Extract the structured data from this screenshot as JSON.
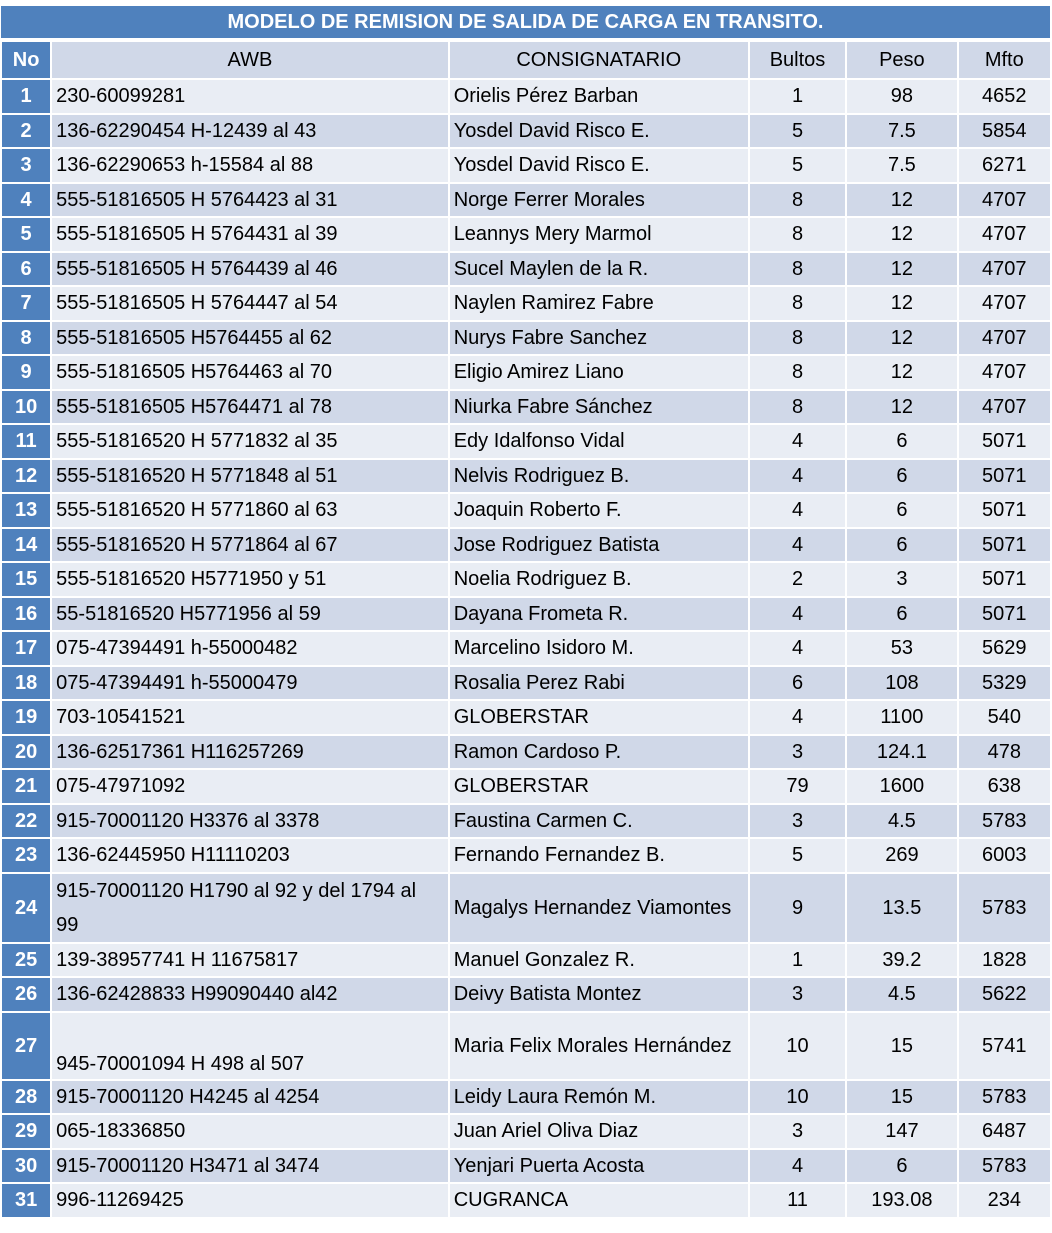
{
  "title": "MODELO DE REMISION DE SALIDA DE CARGA EN TRANSITO.",
  "colors": {
    "header_blue": "#4F81BD",
    "row_dark": "#D0D8E8",
    "row_light": "#E9EDF4"
  },
  "columns": [
    "No",
    "AWB",
    "CONSIGNATARIO",
    "Bultos",
    "Peso",
    "Mfto"
  ],
  "rows": [
    {
      "no": "1",
      "awb": "230-60099281",
      "consignatario": "Orielis Pérez Barban",
      "bultos": "1",
      "peso": "98",
      "mfto": "4652"
    },
    {
      "no": "2",
      "awb": "136-62290454 H-12439 al 43",
      "consignatario": "Yosdel David Risco E.",
      "bultos": "5",
      "peso": "7.5",
      "mfto": "5854"
    },
    {
      "no": "3",
      "awb": "136-62290653 h-15584 al 88",
      "consignatario": "Yosdel David Risco E.",
      "bultos": "5",
      "peso": "7.5",
      "mfto": "6271"
    },
    {
      "no": "4",
      "awb": "555-51816505 H 5764423 al 31",
      "consignatario": "Norge Ferrer Morales",
      "bultos": "8",
      "peso": "12",
      "mfto": "4707"
    },
    {
      "no": "5",
      "awb": "555-51816505 H 5764431 al 39",
      "consignatario": "Leannys Mery Marmol",
      "bultos": "8",
      "peso": "12",
      "mfto": "4707"
    },
    {
      "no": "6",
      "awb": "555-51816505 H 5764439 al 46",
      "consignatario": "Sucel Maylen de la R.",
      "bultos": "8",
      "peso": "12",
      "mfto": "4707"
    },
    {
      "no": "7",
      "awb": "555-51816505 H 5764447 al 54",
      "consignatario": "Naylen Ramirez Fabre",
      "bultos": "8",
      "peso": "12",
      "mfto": "4707"
    },
    {
      "no": "8",
      "awb": "555-51816505 H5764455 al 62",
      "consignatario": "Nurys Fabre Sanchez",
      "bultos": "8",
      "peso": "12",
      "mfto": "4707"
    },
    {
      "no": "9",
      "awb": "555-51816505 H5764463 al 70",
      "consignatario": "Eligio Amirez Liano",
      "bultos": "8",
      "peso": "12",
      "mfto": "4707"
    },
    {
      "no": "10",
      "awb": "555-51816505 H5764471 al 78",
      "consignatario": "Niurka Fabre Sánchez",
      "bultos": "8",
      "peso": "12",
      "mfto": "4707"
    },
    {
      "no": "11",
      "awb": "555-51816520 H 5771832 al 35",
      "consignatario": "Edy Idalfonso Vidal",
      "bultos": "4",
      "peso": "6",
      "mfto": "5071"
    },
    {
      "no": "12",
      "awb": "555-51816520 H 5771848 al 51",
      "consignatario": "Nelvis Rodriguez B.",
      "bultos": "4",
      "peso": "6",
      "mfto": "5071"
    },
    {
      "no": "13",
      "awb": "555-51816520 H 5771860 al 63",
      "consignatario": "Joaquin Roberto F.",
      "bultos": "4",
      "peso": "6",
      "mfto": "5071"
    },
    {
      "no": "14",
      "awb": "555-51816520 H 5771864 al 67",
      "consignatario": "Jose Rodriguez Batista",
      "bultos": "4",
      "peso": "6",
      "mfto": "5071"
    },
    {
      "no": "15",
      "awb": "555-51816520 H5771950  y 51",
      "consignatario": "Noelia Rodriguez B.",
      "bultos": "2",
      "peso": "3",
      "mfto": "5071"
    },
    {
      "no": "16",
      "awb": "55-51816520 H5771956 al 59",
      "consignatario": "Dayana Frometa R.",
      "bultos": "4",
      "peso": "6",
      "mfto": "5071"
    },
    {
      "no": "17",
      "awb": "075-47394491 h-55000482",
      "consignatario": "Marcelino Isidoro M.",
      "bultos": "4",
      "peso": "53",
      "mfto": "5629"
    },
    {
      "no": "18",
      "awb": "075-47394491 h-55000479",
      "consignatario": "Rosalia Perez Rabi",
      "bultos": "6",
      "peso": "108",
      "mfto": "5329"
    },
    {
      "no": "19",
      "awb": "703-10541521",
      "consignatario": "GLOBERSTAR",
      "bultos": "4",
      "peso": "1100",
      "mfto": "540"
    },
    {
      "no": "20",
      "awb": "136-62517361 H116257269",
      "consignatario": "Ramon Cardoso P.",
      "bultos": "3",
      "peso": "124.1",
      "mfto": "478"
    },
    {
      "no": "21",
      "awb": "075-47971092",
      "consignatario": "GLOBERSTAR",
      "bultos": "79",
      "peso": "1600",
      "mfto": "638"
    },
    {
      "no": "22",
      "awb": "915-70001120 H3376 al 3378",
      "consignatario": "Faustina Carmen C.",
      "bultos": "3",
      "peso": "4.5",
      "mfto": "5783"
    },
    {
      "no": "23",
      "awb": "136-62445950 H11110203",
      "consignatario": "Fernando Fernandez B.",
      "bultos": "5",
      "peso": "269",
      "mfto": "6003"
    },
    {
      "no": "24",
      "awb": "915-70001120 H1790 al 92 y del 1794 al 99",
      "consignatario": "Magalys Hernandez Viamontes",
      "bultos": "9",
      "peso": "13.5",
      "mfto": "5783"
    },
    {
      "no": "25",
      "awb": "139-38957741 H 11675817",
      "consignatario": "Manuel Gonzalez R.",
      "bultos": "1",
      "peso": "39.2",
      "mfto": "1828"
    },
    {
      "no": "26",
      "awb": "136-62428833 H99090440 al42",
      "consignatario": "Deivy Batista Montez",
      "bultos": "3",
      "peso": "4.5",
      "mfto": "5622"
    },
    {
      "no": "27",
      "awb": "945-70001094 H 498 al 507",
      "consignatario": "Maria Felix Morales Hernández",
      "bultos": "10",
      "peso": "15",
      "mfto": "5741"
    },
    {
      "no": "28",
      "awb": "915-70001120 H4245 al 4254",
      "consignatario": "Leidy Laura Remón M.",
      "bultos": "10",
      "peso": "15",
      "mfto": "5783"
    },
    {
      "no": "29",
      "awb": "065-18336850",
      "consignatario": "Juan Ariel  Oliva Diaz",
      "bultos": "3",
      "peso": "147",
      "mfto": "6487"
    },
    {
      "no": "30",
      "awb": "915-70001120 H3471 al 3474",
      "consignatario": "Yenjari Puerta Acosta",
      "bultos": "4",
      "peso": "6",
      "mfto": "5783"
    },
    {
      "no": "31",
      "awb": "996-11269425",
      "consignatario": "CUGRANCA",
      "bultos": "11",
      "peso": "193.08",
      "mfto": "234"
    }
  ]
}
